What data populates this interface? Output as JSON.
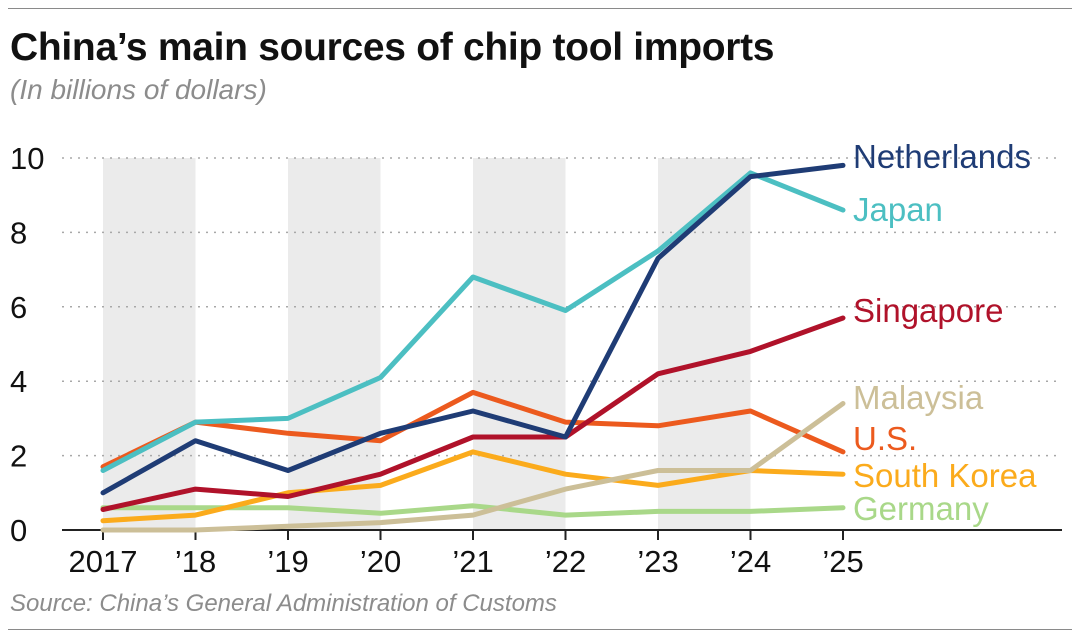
{
  "title": "China’s main sources of chip tool imports",
  "subtitle": "(In billions of dollars)",
  "source": "Source: China’s General Administration of Customs",
  "chart_data": {
    "type": "line",
    "title": "China’s main sources of chip tool imports",
    "subtitle": "(In billions of dollars)",
    "x": [
      "2017",
      "’18",
      "’19",
      "’20",
      "’21",
      "’22",
      "’23",
      "’24",
      "’25"
    ],
    "ylim": [
      0,
      10
    ],
    "yticks": [
      0,
      2,
      4,
      6,
      8,
      10
    ],
    "grid": true,
    "shaded_columns": [
      "’18",
      "’20",
      "’22",
      "’24"
    ],
    "legend": "inline-right",
    "series": [
      {
        "name": "Netherlands",
        "color": "#1f3c75",
        "values": [
          1.0,
          2.4,
          1.6,
          2.6,
          3.2,
          2.5,
          7.3,
          9.5,
          9.8
        ]
      },
      {
        "name": "Japan",
        "color": "#4cbfc2",
        "values": [
          1.6,
          2.9,
          3.0,
          4.1,
          6.8,
          5.9,
          7.5,
          9.6,
          8.6
        ]
      },
      {
        "name": "Singapore",
        "color": "#b0122a",
        "values": [
          0.55,
          1.1,
          0.9,
          1.5,
          2.5,
          2.5,
          4.2,
          4.8,
          5.7
        ]
      },
      {
        "name": "Malaysia",
        "color": "#ccbf98",
        "values": [
          0.0,
          0.0,
          0.1,
          0.2,
          0.4,
          1.1,
          1.6,
          1.6,
          3.4
        ]
      },
      {
        "name": "U.S.",
        "color": "#ec5a1e",
        "values": [
          1.7,
          2.9,
          2.6,
          2.4,
          3.7,
          2.9,
          2.8,
          3.2,
          2.1
        ]
      },
      {
        "name": "South Korea",
        "color": "#fbab1c",
        "values": [
          0.25,
          0.4,
          1.0,
          1.2,
          2.1,
          1.5,
          1.2,
          1.6,
          1.5
        ]
      },
      {
        "name": "Germany",
        "color": "#a9d889",
        "values": [
          0.6,
          0.6,
          0.6,
          0.45,
          0.65,
          0.4,
          0.5,
          0.5,
          0.6
        ]
      }
    ]
  }
}
